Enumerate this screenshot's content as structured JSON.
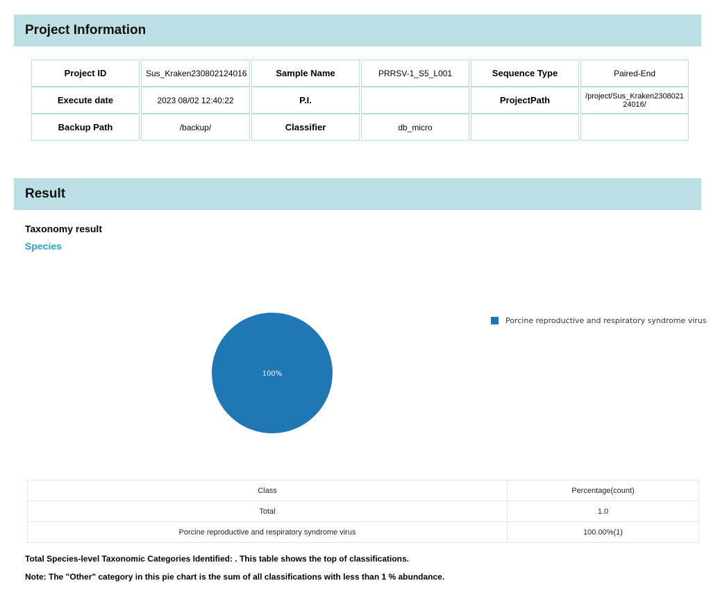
{
  "project_info": {
    "heading": "Project Information",
    "rows": [
      [
        "Project ID",
        "Sus_Kraken230802124016",
        "Sample Name",
        "PRRSV-1_S5_L001",
        "Sequence Type",
        "Paired-End"
      ],
      [
        "Execute date",
        "2023 08/02 12:40:22",
        "P.I.",
        "",
        "ProjectPath",
        "/project/Sus_Kraken230802124016/"
      ],
      [
        "Backup Path",
        "/backup/",
        "Classifier",
        "db_micro",
        "",
        ""
      ]
    ]
  },
  "result": {
    "heading": "Result",
    "taxonomy_title": "Taxonomy result",
    "species_title": "Species",
    "table": {
      "headers": [
        "Class",
        "Percentage(count)"
      ],
      "rows": [
        [
          "Total",
          "1.0"
        ],
        [
          "Porcine reproductive and respiratory syndrome virus",
          "100.00%(1)"
        ]
      ]
    },
    "note1": "Total Species-level Taxonomic Categories Identified: . This table shows the top of classifications.",
    "note2": "Note: The \"Other\" category in this pie chart is the sum of all classifications with less than 1 % abundance."
  },
  "chart_data": {
    "type": "pie",
    "title": "",
    "categories": [
      "Porcine reproductive and respiratory syndrome virus"
    ],
    "values": [
      100
    ],
    "labels": [
      "100%"
    ],
    "colors": [
      "#1f77b4"
    ],
    "legend": "right"
  }
}
